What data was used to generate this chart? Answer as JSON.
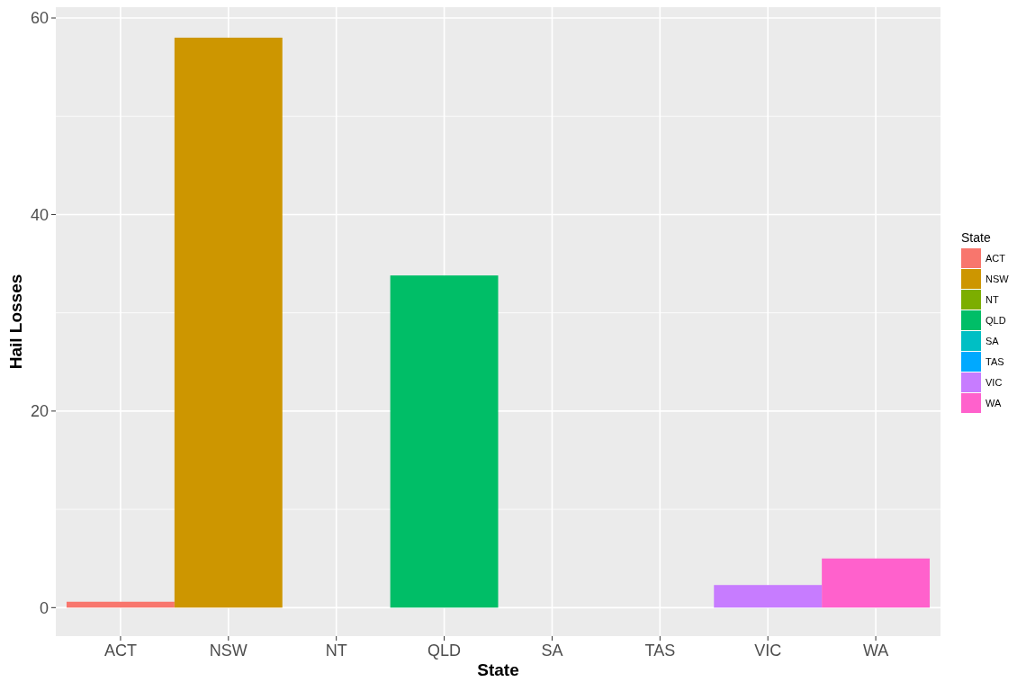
{
  "chart_data": {
    "type": "bar",
    "xlabel": "State",
    "ylabel": "Hail Losses",
    "legend_title": "State",
    "categories": [
      "ACT",
      "NSW",
      "NT",
      "QLD",
      "SA",
      "TAS",
      "VIC",
      "WA"
    ],
    "series": [
      {
        "name": "ACT",
        "color": "#f8766d",
        "values": [
          0.6,
          null,
          null,
          null,
          null,
          null,
          null,
          null
        ]
      },
      {
        "name": "NSW",
        "color": "#cd9600",
        "values": [
          null,
          58,
          null,
          null,
          null,
          null,
          null,
          null
        ]
      },
      {
        "name": "NT",
        "color": "#7cae00",
        "values": [
          null,
          null,
          0,
          null,
          null,
          null,
          null,
          null
        ]
      },
      {
        "name": "QLD",
        "color": "#00be67",
        "values": [
          null,
          null,
          null,
          33.8,
          null,
          null,
          null,
          null
        ]
      },
      {
        "name": "SA",
        "color": "#00bfc4",
        "values": [
          null,
          null,
          null,
          null,
          0,
          null,
          null,
          null
        ]
      },
      {
        "name": "TAS",
        "color": "#00a9ff",
        "values": [
          null,
          null,
          null,
          null,
          null,
          0,
          null,
          null
        ]
      },
      {
        "name": "VIC",
        "color": "#c77cff",
        "values": [
          null,
          null,
          null,
          null,
          null,
          null,
          2.3,
          null
        ]
      },
      {
        "name": "WA",
        "color": "#ff61cc",
        "values": [
          null,
          null,
          null,
          null,
          null,
          null,
          null,
          5.0
        ]
      }
    ],
    "ylim": [
      -2.9,
      61.1
    ],
    "yticks": [
      0,
      {
        "value": 10,
        "label": null
      },
      20,
      {
        "value": 30,
        "label": null
      },
      40,
      {
        "value": 50,
        "label": null
      },
      60
    ],
    "grid": true,
    "legend": "right"
  }
}
